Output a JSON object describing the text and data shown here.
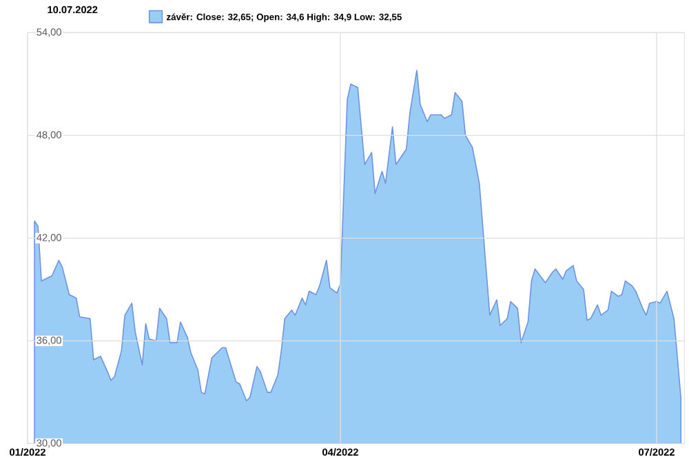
{
  "chart_data": {
    "type": "area",
    "title": "10.07.2022",
    "x": [
      "2022-01-03",
      "2022-01-04",
      "2022-01-05",
      "2022-01-07",
      "2022-01-08",
      "2022-01-10",
      "2022-01-11",
      "2022-01-13",
      "2022-01-15",
      "2022-01-16",
      "2022-01-19",
      "2022-01-20",
      "2022-01-22",
      "2022-01-24",
      "2022-01-25",
      "2022-01-26",
      "2022-01-28",
      "2022-01-29",
      "2022-01-31",
      "2022-02-01",
      "2022-02-03",
      "2022-02-04",
      "2022-02-05",
      "2022-02-07",
      "2022-02-08",
      "2022-02-10",
      "2022-02-11",
      "2022-02-13",
      "2022-02-14",
      "2022-02-16",
      "2022-02-17",
      "2022-02-19",
      "2022-02-20",
      "2022-02-21",
      "2022-02-23",
      "2022-02-26",
      "2022-02-27",
      "2022-03-02",
      "2022-03-03",
      "2022-03-05",
      "2022-03-06",
      "2022-03-08",
      "2022-03-09",
      "2022-03-11",
      "2022-03-12",
      "2022-03-14",
      "2022-03-15",
      "2022-03-16",
      "2022-03-18",
      "2022-03-19",
      "2022-03-21",
      "2022-03-22",
      "2022-03-23",
      "2022-03-25",
      "2022-03-26",
      "2022-03-28",
      "2022-03-29",
      "2022-03-31",
      "2022-04-01",
      "2022-04-03",
      "2022-04-04",
      "2022-04-06",
      "2022-04-08",
      "2022-04-10",
      "2022-04-11",
      "2022-04-13",
      "2022-04-14",
      "2022-04-16",
      "2022-04-17",
      "2022-04-20",
      "2022-04-21",
      "2022-04-23",
      "2022-04-24",
      "2022-04-26",
      "2022-04-27",
      "2022-04-29",
      "2022-04-30",
      "2022-05-01",
      "2022-05-03",
      "2022-05-04",
      "2022-05-06",
      "2022-05-07",
      "2022-05-09",
      "2022-05-11",
      "2022-05-14",
      "2022-05-16",
      "2022-05-17",
      "2022-05-19",
      "2022-05-20",
      "2022-05-22",
      "2022-05-23",
      "2022-05-25",
      "2022-05-26",
      "2022-05-27",
      "2022-05-30",
      "2022-06-01",
      "2022-06-02",
      "2022-06-04",
      "2022-06-05",
      "2022-06-07",
      "2022-06-08",
      "2022-06-10",
      "2022-06-11",
      "2022-06-12",
      "2022-06-14",
      "2022-06-15",
      "2022-06-17",
      "2022-06-18",
      "2022-06-20",
      "2022-06-21",
      "2022-06-22",
      "2022-06-24",
      "2022-06-25",
      "2022-06-27",
      "2022-06-28",
      "2022-06-29",
      "2022-07-01",
      "2022-07-02",
      "2022-07-04",
      "2022-07-06",
      "2022-07-08"
    ],
    "series": [
      {
        "name": "závěr: Close: 32,65; Open: 34,6 High: 34,9 Low: 32,55",
        "color": "#99cdf6",
        "values": [
          43.0,
          42.7,
          39.5,
          39.7,
          39.8,
          40.7,
          40.3,
          38.7,
          38.5,
          37.4,
          37.3,
          34.9,
          35.1,
          34.2,
          33.7,
          33.9,
          35.4,
          37.5,
          38.2,
          36.5,
          34.6,
          37.0,
          36.1,
          36.0,
          37.9,
          37.3,
          35.9,
          35.9,
          37.1,
          36.2,
          35.3,
          34.3,
          33.0,
          32.9,
          35.0,
          35.6,
          35.6,
          33.6,
          33.5,
          32.5,
          32.7,
          34.5,
          34.2,
          33.0,
          33.0,
          34.0,
          35.4,
          37.3,
          37.8,
          37.5,
          38.5,
          38.1,
          38.9,
          38.7,
          39.2,
          40.7,
          39.1,
          38.8,
          39.3,
          50.1,
          51.0,
          50.8,
          46.3,
          47.0,
          44.6,
          45.9,
          45.2,
          48.5,
          46.3,
          47.2,
          49.3,
          51.8,
          49.8,
          48.8,
          49.2,
          49.2,
          49.2,
          49.0,
          49.2,
          50.5,
          50.0,
          48.0,
          47.3,
          45.2,
          37.5,
          38.4,
          36.9,
          37.3,
          38.3,
          37.9,
          35.9,
          37.1,
          39.5,
          40.2,
          39.4,
          40.0,
          40.2,
          39.6,
          40.1,
          40.4,
          39.5,
          39.0,
          37.2,
          37.3,
          38.1,
          37.5,
          37.8,
          38.9,
          38.6,
          38.7,
          39.5,
          39.2,
          38.9,
          37.9,
          37.5,
          38.2,
          38.3,
          38.2,
          38.9,
          37.3,
          32.65
        ]
      }
    ],
    "xlim": [
      "2022-01-01",
      "2022-07-09"
    ],
    "xticks": [
      {
        "value": "2022-01-01",
        "label": "01/2022"
      },
      {
        "value": "2022-04-01",
        "label": "04/2022"
      },
      {
        "value": "2022-07-01",
        "label": "07/2022"
      }
    ],
    "ylim": [
      30,
      54
    ],
    "yticks": [
      {
        "value": 30,
        "label": "30,00"
      },
      {
        "value": 36,
        "label": "36,00"
      },
      {
        "value": 42,
        "label": "42,00"
      },
      {
        "value": 48,
        "label": "48,00"
      },
      {
        "value": 54,
        "label": "54,00"
      }
    ],
    "grid": true,
    "legend": "top"
  }
}
